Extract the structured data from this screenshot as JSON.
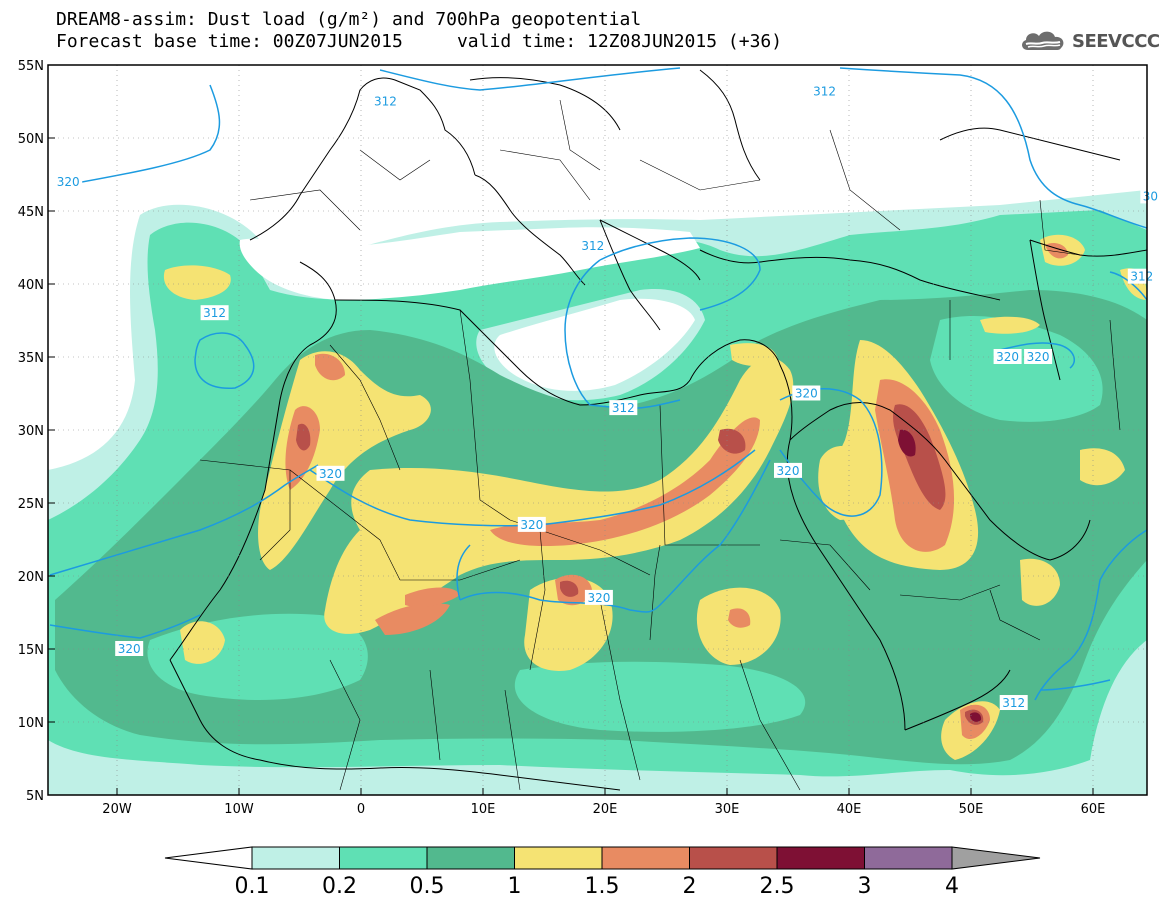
{
  "header": {
    "title_line1": "DREAM8-assim: Dust load (g/m²) and 700hPa geopotential",
    "title_line2": "Forecast base time: 00Z07JUN2015     valid time: 12Z08JUN2015 (+36)"
  },
  "logo": {
    "text": "SEEVCCC",
    "icon": "cloud-logo-icon"
  },
  "axes": {
    "lat_labels": [
      "55N",
      "50N",
      "45N",
      "40N",
      "35N",
      "30N",
      "25N",
      "20N",
      "15N",
      "10N",
      "5N"
    ],
    "lon_labels": [
      "20W",
      "10W",
      "0",
      "10E",
      "20E",
      "30E",
      "40E",
      "50E",
      "60E"
    ]
  },
  "contour_labels": [
    {
      "id": "c1",
      "text": "312",
      "lon": 2,
      "lat": 52.5
    },
    {
      "id": "c2",
      "text": "312",
      "lon": 38,
      "lat": 53.2
    },
    {
      "id": "c3",
      "text": "320",
      "lon": -24,
      "lat": 47
    },
    {
      "id": "c4",
      "text": "312",
      "lon": -12,
      "lat": 38
    },
    {
      "id": "c5",
      "text": "312",
      "lon": 19,
      "lat": 42.6
    },
    {
      "id": "c6",
      "text": "312",
      "lon": 21.5,
      "lat": 31.5
    },
    {
      "id": "c7",
      "text": "320",
      "lon": 36.5,
      "lat": 32.5
    },
    {
      "id": "c8",
      "text": "320",
      "lon": -2.5,
      "lat": 27
    },
    {
      "id": "c9",
      "text": "320",
      "lon": 35,
      "lat": 27.2
    },
    {
      "id": "c10",
      "text": "320",
      "lon": 14,
      "lat": 23.5
    },
    {
      "id": "c11",
      "text": "320",
      "lon": 19.5,
      "lat": 18.5
    },
    {
      "id": "c12",
      "text": "320",
      "lon": -19,
      "lat": 15
    },
    {
      "id": "c13",
      "text": "312",
      "lon": 53.5,
      "lat": 11.3
    },
    {
      "id": "c14",
      "text": "312",
      "lon": 64,
      "lat": 40.5
    },
    {
      "id": "c15",
      "text": "320",
      "lon": 53,
      "lat": 35
    },
    {
      "id": "c16",
      "text": "320",
      "lon": 55.5,
      "lat": 35
    },
    {
      "id": "c17",
      "text": "30",
      "lon": 64.7,
      "lat": 46
    }
  ],
  "colorbar": {
    "labels": [
      "0.1",
      "0.2",
      "0.5",
      "1",
      "1.5",
      "2",
      "2.5",
      "3",
      "4"
    ],
    "colors": [
      "#ffffff",
      "#bff0e6",
      "#5fe0b4",
      "#52b98e",
      "#f5e373",
      "#e88b62",
      "#b8504a",
      "#7e1034",
      "#8f6a9a",
      "#a0a0a0"
    ]
  },
  "colors": {
    "contour_line": "#1c9be0",
    "dust_0_1": "#bff0e6",
    "dust_0_2": "#5fe0b4",
    "dust_0_5": "#52b98e",
    "dust_1": "#f5e373",
    "dust_1_5": "#e88b62",
    "dust_2": "#b8504a",
    "dust_2_5": "#7e1034"
  }
}
